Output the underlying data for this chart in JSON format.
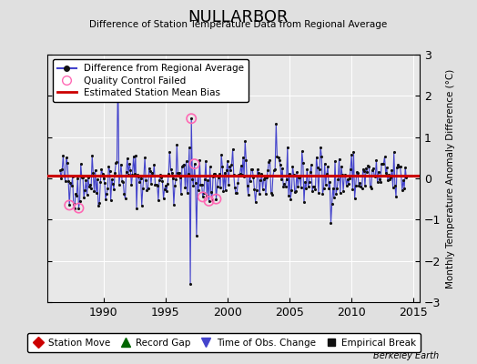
{
  "title": "NULLARBOR",
  "subtitle": "Difference of Station Temperature Data from Regional Average",
  "ylabel_right": "Monthly Temperature Anomaly Difference (°C)",
  "xlim": [
    1985.5,
    2015.5
  ],
  "ylim": [
    -3,
    3
  ],
  "yticks": [
    -3,
    -2,
    -1,
    0,
    1,
    2,
    3
  ],
  "xticks": [
    1990,
    1995,
    2000,
    2005,
    2010,
    2015
  ],
  "bias_line_y": 0.07,
  "background_color": "#e0e0e0",
  "plot_bg_color": "#e8e8e8",
  "grid_color": "#ffffff",
  "line_color": "#4444cc",
  "marker_color": "#111111",
  "bias_color": "#cc0000",
  "qc_fail_color": "#ff69b4",
  "berkeley_earth_text": "Berkeley Earth",
  "seed": 42,
  "n_points": 336,
  "start_year": 1986.5
}
